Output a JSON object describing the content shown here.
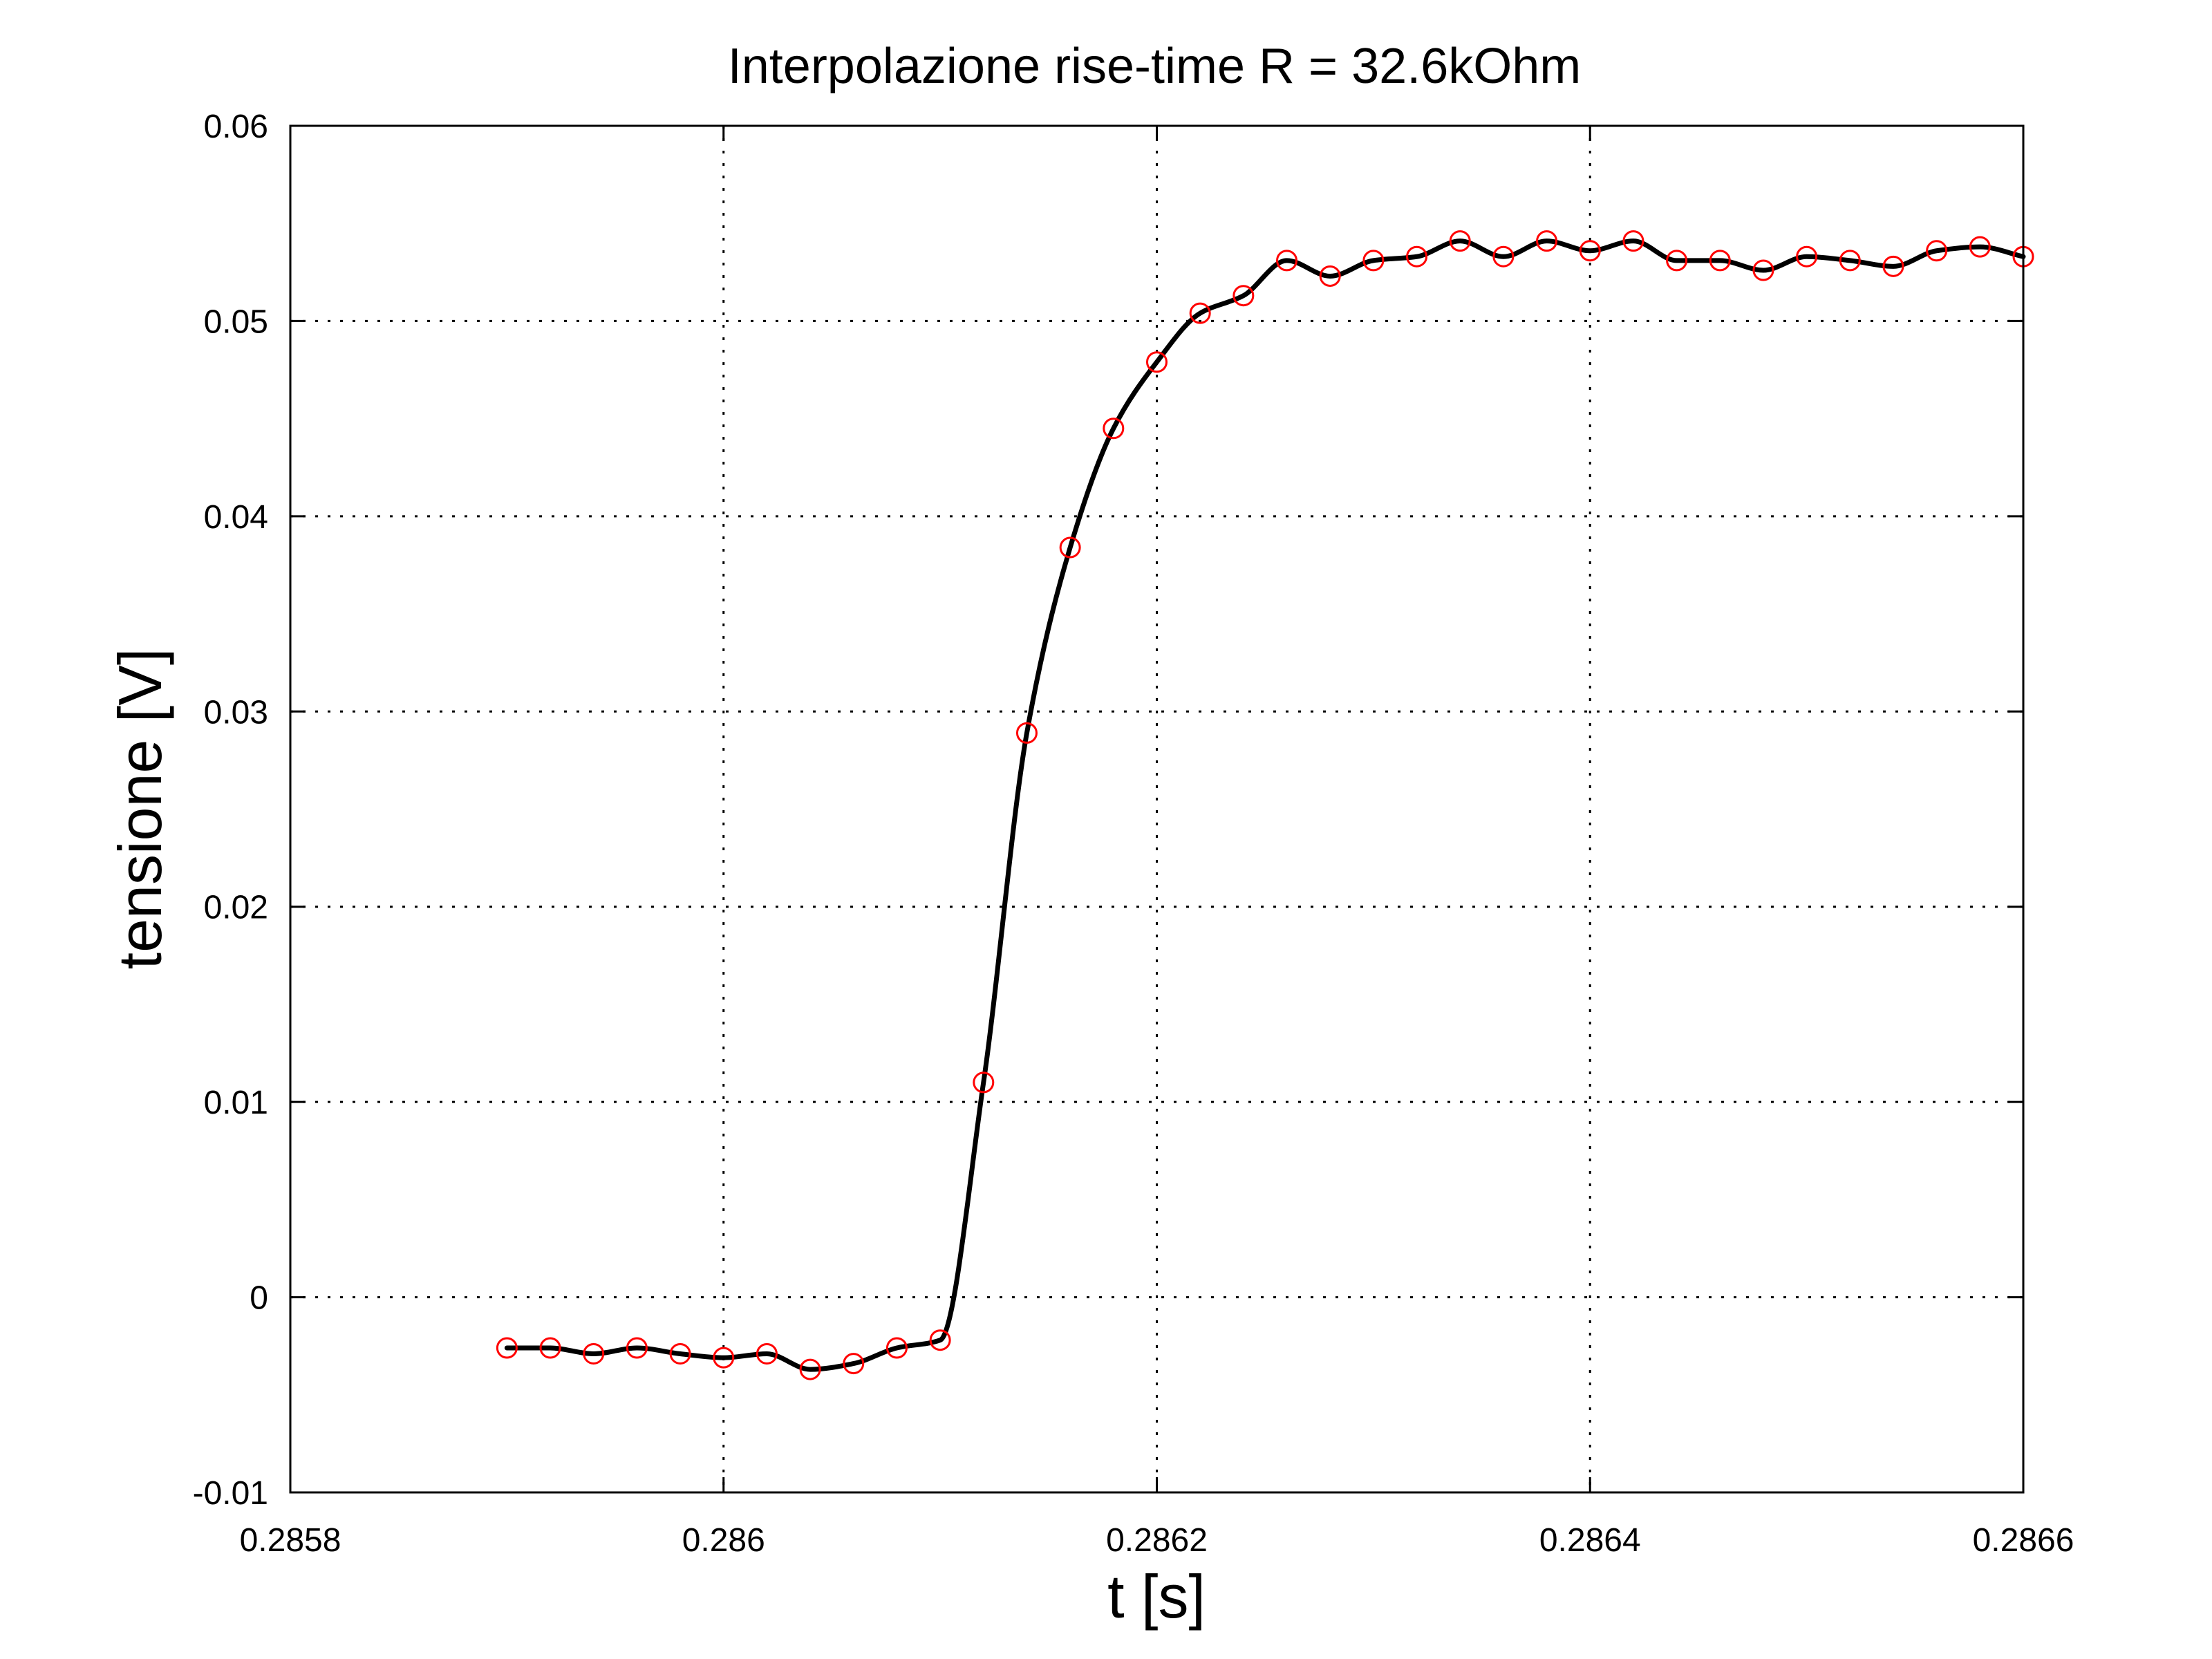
{
  "chart_data": {
    "type": "line",
    "title": "Interpolazione rise-time R = 32.6kOhm",
    "xlabel": "t [s]",
    "ylabel": "tensione [V]",
    "xlim": [
      0.2858,
      0.2866
    ],
    "ylim": [
      -0.01,
      0.06
    ],
    "xticks": [
      0.2858,
      0.286,
      0.2862,
      0.2864,
      0.2866
    ],
    "xtick_labels": [
      "0.2858",
      "0.286",
      "0.2862",
      "0.2864",
      "0.2866"
    ],
    "yticks": [
      -0.01,
      0,
      0.01,
      0.02,
      0.03,
      0.04,
      0.05,
      0.06
    ],
    "ytick_labels": [
      "-0.01",
      "0",
      "0.01",
      "0.02",
      "0.03",
      "0.04",
      "0.05",
      "0.06"
    ],
    "grid": true,
    "legend": "none",
    "series": [
      {
        "style": "markers",
        "marker": "open-circle",
        "color": "#ff0000",
        "x": [
          0.2859,
          0.28592,
          0.28594,
          0.28596,
          0.28598,
          0.286,
          0.28602,
          0.28604,
          0.28606,
          0.28608,
          0.2861,
          0.28612,
          0.28614,
          0.28616,
          0.28618,
          0.2862,
          0.28622,
          0.28624,
          0.28626,
          0.28628,
          0.2863,
          0.28632,
          0.28634,
          0.28636,
          0.28638,
          0.2864,
          0.28642,
          0.28644,
          0.28646,
          0.28648,
          0.2865,
          0.28652,
          0.28654,
          0.28656,
          0.28658,
          0.2866
        ],
        "y": [
          -0.0026,
          -0.0026,
          -0.0029,
          -0.0026,
          -0.0029,
          -0.0031,
          -0.0029,
          -0.0037,
          -0.0034,
          -0.0026,
          -0.0022,
          0.011,
          0.0289,
          0.0384,
          0.0445,
          0.0479,
          0.0504,
          0.0513,
          0.0531,
          0.0523,
          0.0531,
          0.0533,
          0.0541,
          0.0533,
          0.0541,
          0.0536,
          0.0541,
          0.0531,
          0.0531,
          0.0526,
          0.0533,
          0.0531,
          0.0528,
          0.0536,
          0.0538,
          0.0533
        ]
      },
      {
        "style": "line",
        "color": "#000000",
        "interpolation": "smooth"
      }
    ]
  }
}
